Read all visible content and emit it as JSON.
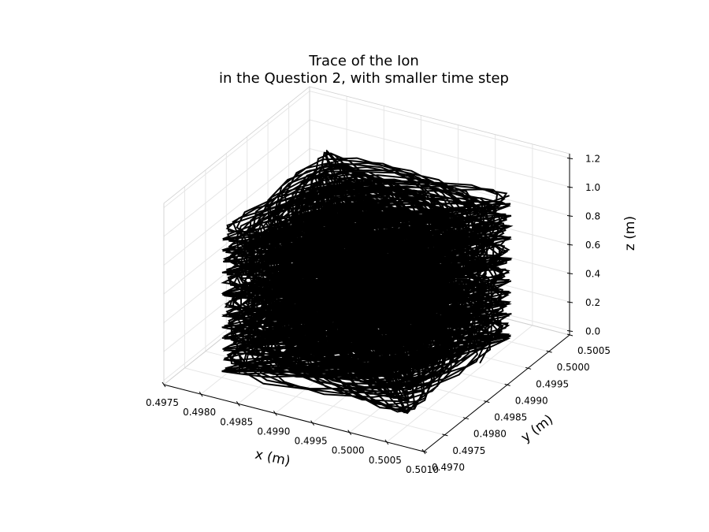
{
  "chart_data": {
    "type": "line",
    "projection": "3d",
    "title_line1": "Trace of the Ion",
    "title_line2": "in the Question 2, with smaller time step",
    "xlabel": "x (m)",
    "ylabel": "y (m)",
    "zlabel": "z (m)",
    "xlim": [
      0.4975,
      0.501
    ],
    "ylim": [
      0.497,
      0.5005
    ],
    "zlim": [
      0.0,
      1.2
    ],
    "xticks": [
      "0.4975",
      "0.4980",
      "0.4985",
      "0.4990",
      "0.4995",
      "0.5000",
      "0.5005",
      "0.5010"
    ],
    "yticks": [
      "0.4970",
      "0.4975",
      "0.4980",
      "0.4985",
      "0.4990",
      "0.4995",
      "0.5000",
      "0.5005"
    ],
    "zticks": [
      "0.0",
      "0.2",
      "0.4",
      "0.6",
      "0.8",
      "1.0",
      "1.2"
    ],
    "grid": true,
    "line_color": "#000000",
    "trace": {
      "center_x": 0.49925,
      "center_y": 0.49875,
      "radius_x": 0.00125,
      "radius_y": 0.00125,
      "z_start": 0.0,
      "z_end": 1.0
    }
  }
}
